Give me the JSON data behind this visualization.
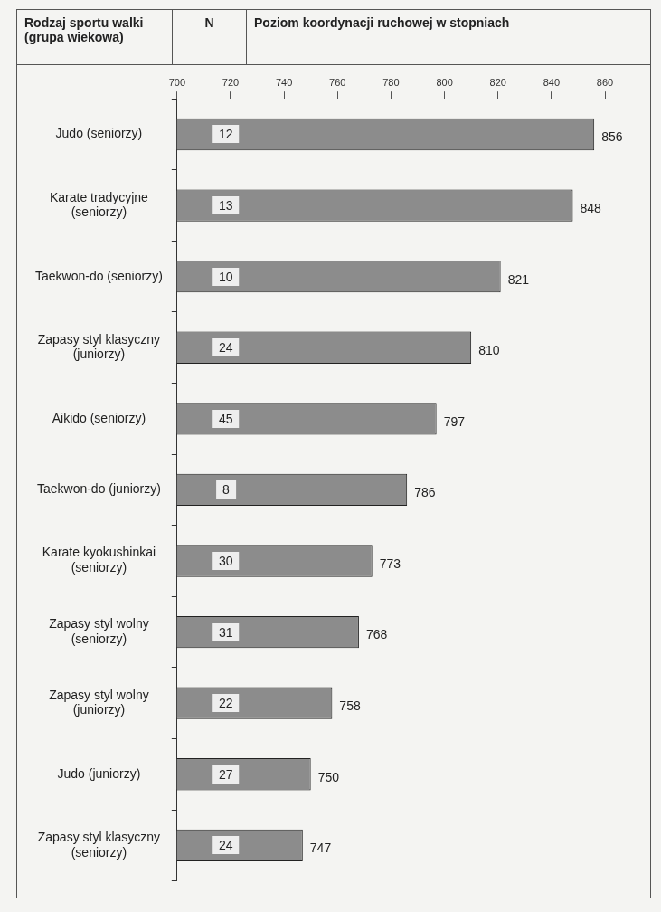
{
  "chart_data": {
    "type": "bar",
    "orientation": "horizontal",
    "title": "Poziom koordynacji ruchowej w stopniach",
    "ylabel": "Rodzaj sportu walki (grupa wiekowa)",
    "categories": [
      "Judo (seniorzy)",
      "Karate tradycyjne (seniorzy)",
      "Taekwon-do (seniorzy)",
      "Zapasy styl klasyczny (juniorzy)",
      "Aikido (seniorzy)",
      "Taekwon-do (juniorzy)",
      "Karate kyokushinkai (seniorzy)",
      "Zapasy styl wolny (seniorzy)",
      "Zapasy styl wolny (juniorzy)",
      "Judo (juniorzy)",
      "Zapasy styl klasyczny (seniorzy)"
    ],
    "values": [
      856,
      848,
      821,
      810,
      797,
      786,
      773,
      768,
      758,
      750,
      747
    ],
    "color": "#8c8c8c",
    "data_labels": true,
    "grid": false,
    "legend": false,
    "xlim": [
      700,
      860
    ],
    "xticks": [
      700,
      720,
      740,
      760,
      780,
      800,
      820,
      840,
      860
    ],
    "annotations": [
      "N",
      "12",
      "13",
      "10",
      "24",
      "45",
      "8",
      "30",
      "31",
      "22",
      "27",
      "24"
    ]
  }
}
